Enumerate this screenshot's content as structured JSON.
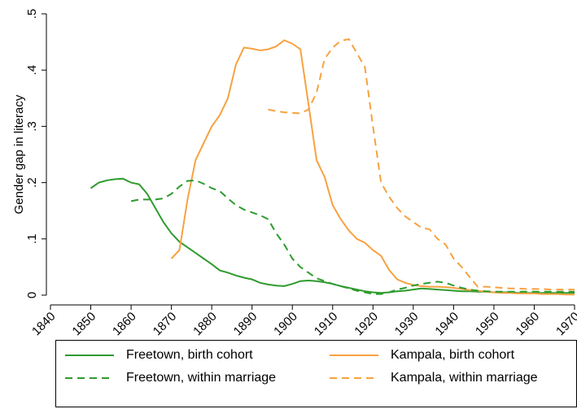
{
  "chart_data": {
    "type": "line",
    "y_label": "Gender gap in literacy",
    "x": [
      1850,
      1852,
      1854,
      1856,
      1858,
      1860,
      1862,
      1864,
      1866,
      1868,
      1870,
      1872,
      1874,
      1876,
      1878,
      1880,
      1882,
      1884,
      1886,
      1888,
      1890,
      1892,
      1894,
      1896,
      1898,
      1900,
      1902,
      1904,
      1906,
      1908,
      1910,
      1912,
      1914,
      1916,
      1918,
      1920,
      1922,
      1924,
      1926,
      1928,
      1930,
      1932,
      1934,
      1936,
      1938,
      1940,
      1942,
      1944,
      1946,
      1948,
      1950,
      1952,
      1954,
      1956,
      1958,
      1960,
      1962,
      1964,
      1966,
      1968,
      1970
    ],
    "series": [
      {
        "name": "Freetown, birth cohort",
        "color": "#2e9b2e",
        "dash": false,
        "values": [
          0.19,
          0.2,
          0.204,
          0.206,
          0.207,
          0.2,
          0.197,
          0.18,
          0.155,
          0.13,
          0.11,
          0.095,
          0.085,
          0.075,
          0.065,
          0.055,
          0.044,
          0.04,
          0.035,
          0.031,
          0.028,
          0.022,
          0.019,
          0.017,
          0.016,
          0.02,
          0.025,
          0.026,
          0.025,
          0.023,
          0.02,
          0.016,
          0.013,
          0.01,
          0.007,
          0.005,
          0.004,
          0.005,
          0.007,
          0.008,
          0.01,
          0.012,
          0.011,
          0.01,
          0.009,
          0.008,
          0.007,
          0.007,
          0.006,
          0.006,
          0.005,
          0.005,
          0.005,
          0.004,
          0.004,
          0.004,
          0.004,
          0.004,
          0.004,
          0.004,
          0.004
        ]
      },
      {
        "name": "Kampala, birth cohort",
        "color": "#f7a240",
        "dash": false,
        "values": [
          null,
          null,
          null,
          null,
          null,
          null,
          null,
          null,
          null,
          null,
          0.065,
          0.08,
          0.17,
          0.24,
          0.27,
          0.3,
          0.32,
          0.35,
          0.41,
          0.44,
          0.438,
          0.435,
          0.437,
          0.442,
          0.453,
          0.447,
          0.437,
          0.34,
          0.24,
          0.21,
          0.16,
          0.135,
          0.115,
          0.1,
          0.093,
          0.08,
          0.07,
          0.045,
          0.028,
          0.022,
          0.018,
          0.016,
          0.015,
          0.015,
          0.014,
          0.013,
          0.011,
          0.009,
          0.008,
          0.006,
          0.005,
          0.004,
          0.004,
          0.003,
          0.003,
          0.003,
          0.002,
          0.002,
          0.002,
          0.001,
          0.001
        ]
      },
      {
        "name": "Freetown, within marriage",
        "color": "#2e9b2e",
        "dash": true,
        "values": [
          null,
          null,
          null,
          null,
          null,
          0.167,
          0.17,
          0.17,
          0.17,
          0.172,
          0.18,
          0.193,
          0.203,
          0.204,
          0.198,
          0.19,
          0.185,
          0.172,
          0.16,
          0.152,
          0.147,
          0.142,
          0.135,
          0.11,
          0.09,
          0.065,
          0.05,
          0.04,
          0.03,
          0.025,
          0.02,
          0.016,
          0.012,
          0.008,
          0.005,
          0.002,
          0.002,
          0.005,
          0.01,
          0.013,
          0.017,
          0.02,
          0.022,
          0.024,
          0.022,
          0.017,
          0.013,
          0.01,
          0.008,
          0.007,
          0.006,
          0.006,
          0.006,
          0.006,
          0.006,
          0.006,
          0.006,
          0.006,
          0.006,
          0.006,
          0.006
        ]
      },
      {
        "name": "Kampala, within marriage",
        "color": "#f7a240",
        "dash": true,
        "values": [
          null,
          null,
          null,
          null,
          null,
          null,
          null,
          null,
          null,
          null,
          null,
          null,
          null,
          null,
          null,
          null,
          null,
          null,
          null,
          null,
          null,
          null,
          0.33,
          0.327,
          0.325,
          0.324,
          0.323,
          0.33,
          0.36,
          0.42,
          0.44,
          0.452,
          0.455,
          0.43,
          0.405,
          0.3,
          0.2,
          0.175,
          0.155,
          0.14,
          0.13,
          0.12,
          0.117,
          0.1,
          0.09,
          0.065,
          0.05,
          0.032,
          0.015,
          0.015,
          0.014,
          0.013,
          0.012,
          0.012,
          0.011,
          0.011,
          0.011,
          0.01,
          0.01,
          0.01,
          0.01
        ]
      }
    ],
    "xlim": [
      1840,
      1970
    ],
    "xticks": [
      1840,
      1850,
      1860,
      1870,
      1880,
      1890,
      1900,
      1910,
      1920,
      1930,
      1940,
      1950,
      1960,
      1970
    ],
    "ylim": [
      0,
      0.5
    ],
    "yticks": [
      0,
      {
        "value": 0.1,
        "label": ".1"
      },
      {
        "value": 0.2,
        "label": ".2"
      },
      {
        "value": 0.3,
        "label": ".3"
      },
      {
        "value": 0.4,
        "label": ".4"
      },
      {
        "value": 0.5,
        "label": ".5"
      }
    ],
    "legend": "bottom",
    "grid": false
  }
}
